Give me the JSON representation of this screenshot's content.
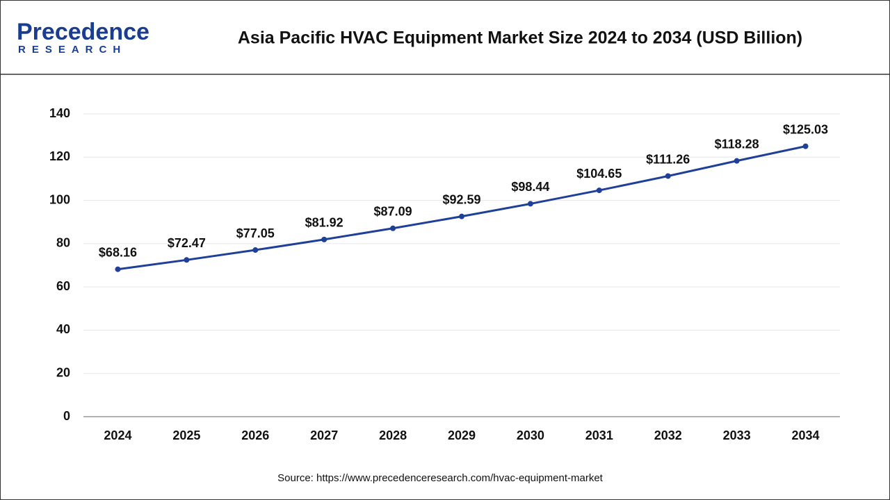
{
  "chart_data": {
    "type": "line",
    "title": "Asia Pacific HVAC Equipment Market Size 2024 to 2034 (USD Billion)",
    "logo": {
      "name": "Precedence",
      "subtitle": "RESEARCH"
    },
    "source": "Source: https://www.precedenceresearch.com/hvac-equipment-market",
    "categories": [
      "2024",
      "2025",
      "2026",
      "2027",
      "2028",
      "2029",
      "2030",
      "2031",
      "2032",
      "2033",
      "2034"
    ],
    "series": [
      {
        "name": "Market Size",
        "color": "#1f3f99",
        "values": [
          68.16,
          72.47,
          77.05,
          81.92,
          87.09,
          92.59,
          98.44,
          104.65,
          111.26,
          118.28,
          125.03
        ],
        "value_labels": [
          "$68.16",
          "$72.47",
          "$77.05",
          "$81.92",
          "$87.09",
          "$92.59",
          "$98.44",
          "$104.65",
          "$111.26",
          "$118.28",
          "$125.03"
        ]
      }
    ],
    "ylim": [
      0,
      140
    ],
    "yticks": [
      0,
      20,
      40,
      60,
      80,
      100,
      120,
      140
    ],
    "grid": true
  }
}
